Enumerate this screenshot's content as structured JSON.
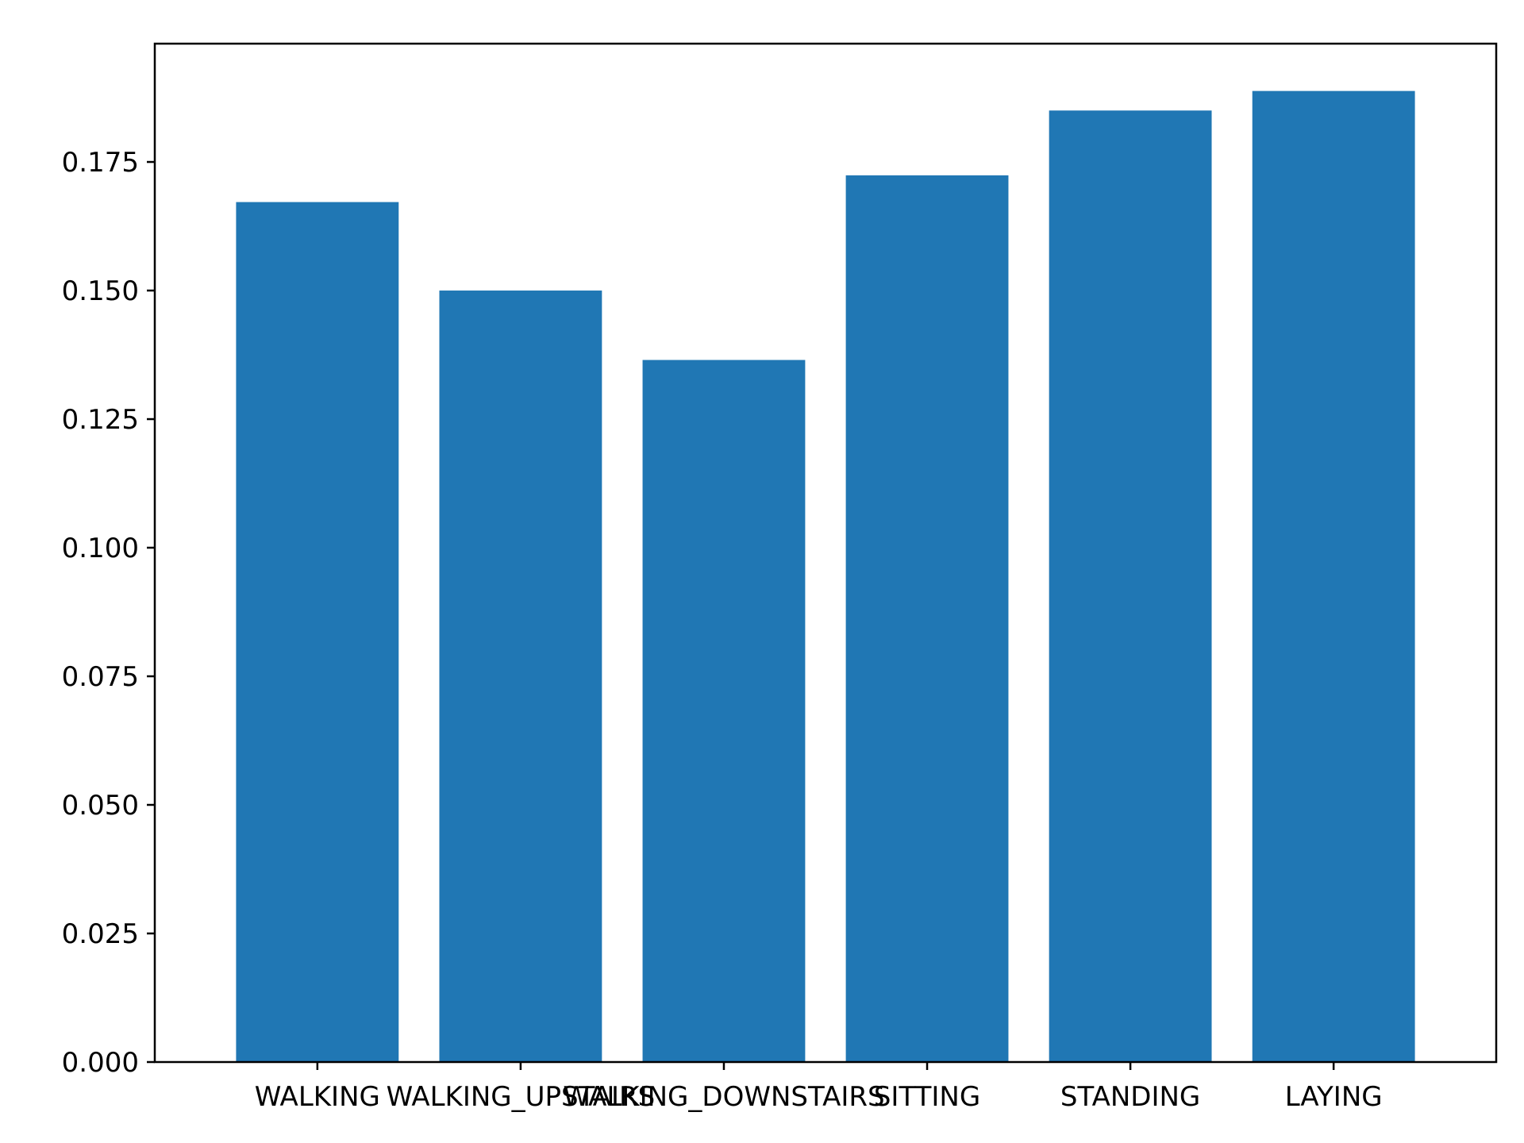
{
  "chart_data": {
    "type": "bar",
    "title": "",
    "xlabel": "",
    "ylabel": "",
    "categories": [
      "WALKING",
      "WALKING_UPSTAIRS",
      "WALKING_DOWNSTAIRS",
      "SITTING",
      "STANDING",
      "LAYING"
    ],
    "values": [
      0.1672,
      0.15,
      0.1365,
      0.1724,
      0.185,
      0.1888
    ],
    "ylim": [
      0,
      0.198
    ],
    "yticks": [
      0.0,
      0.025,
      0.05,
      0.075,
      0.1,
      0.125,
      0.15,
      0.175
    ],
    "ytick_labels": [
      "0.000",
      "0.025",
      "0.050",
      "0.075",
      "0.100",
      "0.125",
      "0.150",
      "0.175"
    ],
    "grid": false,
    "legend": "none",
    "bar_color": "#2077b4",
    "axis_color": "#000000",
    "background": "#ffffff"
  }
}
